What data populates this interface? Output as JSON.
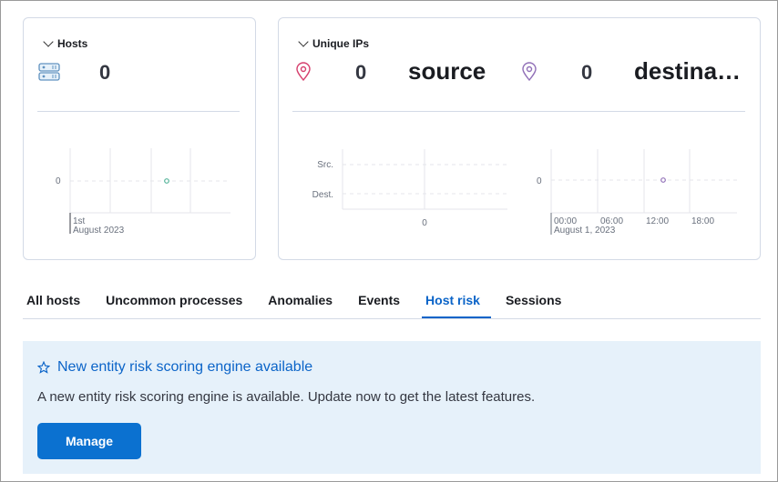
{
  "hosts": {
    "title": "Hosts",
    "value": "0",
    "icon": "server-icon",
    "chart": {
      "type": "scatter",
      "y_tick": "0",
      "x_tick_1": "1st",
      "x_tick_2": "August 2023",
      "point_color": "#54b399"
    }
  },
  "unique_ips": {
    "title": "Unique IPs",
    "source_value": "0",
    "source_label": "source",
    "dest_value": "0",
    "dest_label": "destina…",
    "source_color": "#d6406e",
    "dest_color": "#9170b8",
    "bar_chart": {
      "type": "bar",
      "categories": [
        "Src.",
        "Dest."
      ],
      "x_tick": "0"
    },
    "area_chart": {
      "type": "scatter",
      "y_tick": "0",
      "x_ticks": [
        "00:00",
        "06:00",
        "12:00",
        "18:00"
      ],
      "x_sub": "August 1, 2023",
      "point_color": "#9170b8"
    }
  },
  "tabs": [
    {
      "label": "All hosts"
    },
    {
      "label": "Uncommon processes"
    },
    {
      "label": "Anomalies"
    },
    {
      "label": "Events"
    },
    {
      "label": "Host risk",
      "active": true
    },
    {
      "label": "Sessions"
    }
  ],
  "callout": {
    "title": "New entity risk scoring engine available",
    "body": "A new entity risk scoring engine is available. Update now to get the latest features.",
    "button": "Manage",
    "bg": "#e6f1fa"
  }
}
